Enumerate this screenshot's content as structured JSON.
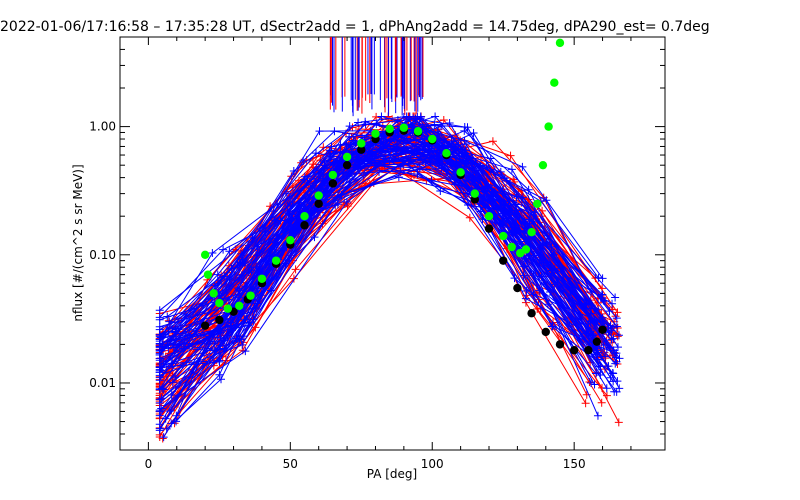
{
  "chart_data": {
    "type": "line",
    "title": "2022-01-06/17:16:58 – 17:35:28 UT, dSectr2add = 1, dPhAng2add = 14.75deg, dPA290_est=   0.7deg",
    "xlabel": "PA [deg]",
    "ylabel": "nflux [#/(cm^2 s sr MeV)]",
    "xlim": [
      -10,
      182
    ],
    "ylim": [
      0.003,
      5
    ],
    "y_scale": "log",
    "x_ticks": [
      0,
      50,
      100,
      150
    ],
    "y_ticks": [
      0.01,
      0.1,
      1.0
    ],
    "y_tick_labels": [
      "0.01",
      "0.10",
      "1.00"
    ],
    "colors": {
      "red_series": "#ff0000",
      "blue_series": "#0000ff",
      "fit": "#000000",
      "model": "#00ff00"
    },
    "series": [
      {
        "style": "dots",
        "color": "#000000",
        "x": [
          20,
          25,
          30,
          35,
          40,
          45,
          50,
          55,
          60,
          65,
          70,
          75,
          80,
          85,
          90,
          95,
          100,
          105,
          110,
          115,
          120,
          125,
          130,
          135,
          140,
          145,
          150,
          155,
          158,
          160
        ],
        "y": [
          0.028,
          0.031,
          0.036,
          0.045,
          0.06,
          0.085,
          0.12,
          0.17,
          0.25,
          0.36,
          0.5,
          0.66,
          0.8,
          0.9,
          0.93,
          0.9,
          0.78,
          0.6,
          0.42,
          0.27,
          0.16,
          0.09,
          0.055,
          0.035,
          0.025,
          0.02,
          0.018,
          0.018,
          0.021,
          0.026
        ]
      },
      {
        "style": "dots",
        "color": "#00ff00",
        "x": [
          20,
          21,
          23,
          25,
          28,
          32,
          36,
          40,
          45,
          50,
          55,
          60,
          65,
          70,
          75,
          80,
          85,
          90,
          95,
          100,
          105,
          110,
          115,
          120,
          125,
          128,
          131,
          133,
          135,
          137,
          139,
          141,
          143,
          145
        ],
        "y": [
          0.1,
          0.07,
          0.05,
          0.042,
          0.038,
          0.04,
          0.048,
          0.065,
          0.09,
          0.13,
          0.2,
          0.29,
          0.42,
          0.58,
          0.74,
          0.88,
          0.96,
          0.98,
          0.92,
          0.8,
          0.62,
          0.44,
          0.3,
          0.2,
          0.14,
          0.115,
          0.103,
          0.11,
          0.15,
          0.25,
          0.5,
          1.0,
          2.2,
          4.5
        ]
      }
    ]
  }
}
